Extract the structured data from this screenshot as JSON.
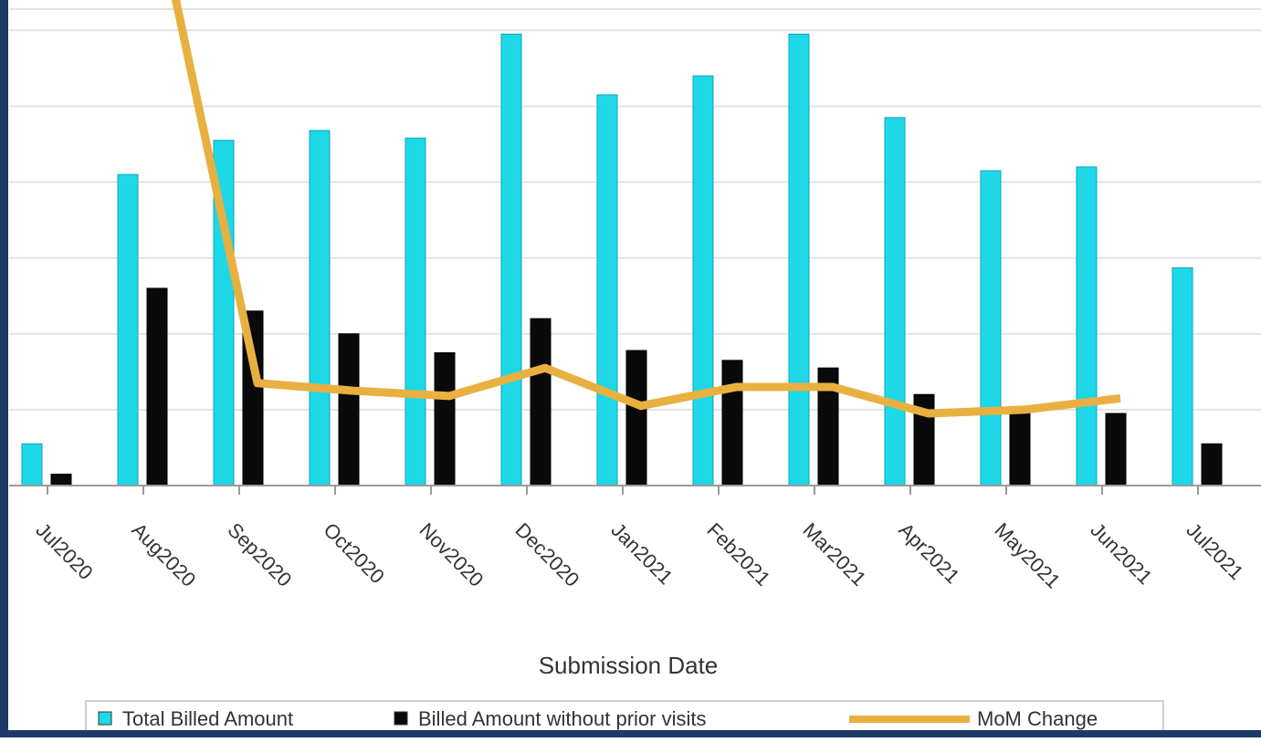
{
  "chart_data": {
    "type": "bar",
    "xlabel": "Submission Date",
    "categories": [
      "Jul2020",
      "Aug2020",
      "Sep2020",
      "Oct2020",
      "Nov2020",
      "Dec2020",
      "Jan2021",
      "Feb2021",
      "Mar2021",
      "Apr2021",
      "May2021",
      "Jun2021",
      "Jul2021"
    ],
    "series": [
      {
        "name": "Total Billed Amount",
        "kind": "bar",
        "color": "#1ed8e8",
        "values": [
          0.55,
          4.1,
          4.55,
          4.68,
          4.58,
          5.95,
          5.15,
          5.4,
          5.95,
          4.85,
          4.15,
          4.2,
          2.87
        ]
      },
      {
        "name": "Billed Amount without prior visits",
        "kind": "bar",
        "color": "#0a0a0a",
        "values": [
          0.15,
          2.6,
          2.3,
          2.0,
          1.75,
          2.2,
          1.78,
          1.65,
          1.55,
          1.2,
          1.0,
          0.95,
          0.55
        ]
      },
      {
        "name": "MoM Change",
        "kind": "line",
        "color": "#e8b040",
        "values": [
          null,
          7.0,
          1.35,
          1.25,
          1.18,
          1.55,
          1.05,
          1.3,
          1.3,
          0.95,
          1.0,
          1.15,
          null
        ]
      }
    ],
    "ylim": [
      0,
      6.4
    ],
    "grid": true,
    "legend": "bottom"
  }
}
